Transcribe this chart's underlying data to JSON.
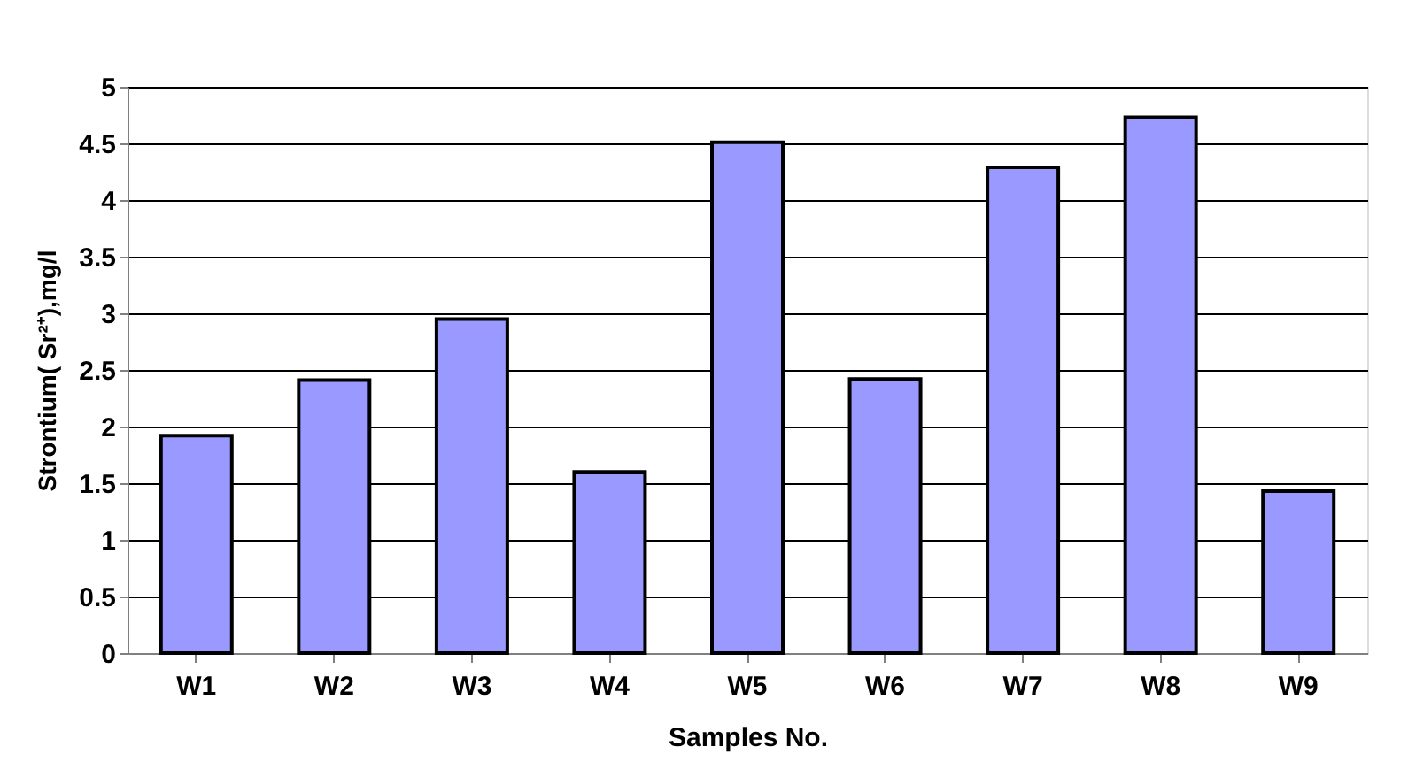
{
  "chart_data": {
    "type": "bar",
    "xlabel": "Samples No.",
    "ylabel": "Strontium( Sr²⁺),mg/l",
    "categories": [
      "W1",
      "W2",
      "W3",
      "W4",
      "W5",
      "W6",
      "W7",
      "W8",
      "W9"
    ],
    "values": [
      1.92,
      2.41,
      2.95,
      1.6,
      4.51,
      2.42,
      4.29,
      4.73,
      1.43
    ],
    "color": "#9999ff",
    "ylim": [
      0,
      5
    ],
    "yticks": [
      0,
      0.5,
      1,
      1.5,
      2,
      2.5,
      3,
      3.5,
      4,
      4.5,
      5
    ],
    "grid": "y"
  }
}
